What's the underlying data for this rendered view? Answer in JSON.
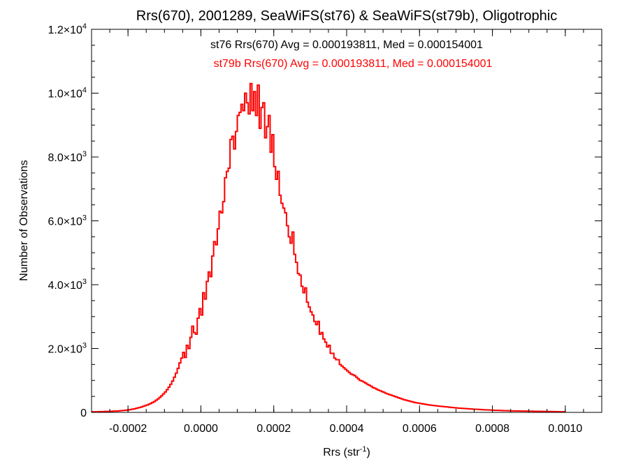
{
  "chart_data": {
    "type": "histogram",
    "title": "Rrs(670), 2001289, SeaWiFS(st76) & SeaWiFS(st79b), Oligotrophic",
    "xlabel": {
      "base": "Rrs (str",
      "sup": "-1",
      "close": ")"
    },
    "ylabel": "Number of Observations",
    "xlim": [
      -0.0003,
      0.0011
    ],
    "ylim": [
      0,
      12000
    ],
    "grid": false,
    "x_ticks": [
      {
        "value": -0.0002,
        "label": "-0.0002"
      },
      {
        "value": 0.0,
        "label": "0.0000"
      },
      {
        "value": 0.0002,
        "label": "0.0002"
      },
      {
        "value": 0.0004,
        "label": "0.0004"
      },
      {
        "value": 0.0006,
        "label": "0.0006"
      },
      {
        "value": 0.0008,
        "label": "0.0008"
      },
      {
        "value": 0.001,
        "label": "0.0010"
      }
    ],
    "y_ticks": [
      {
        "value": 0,
        "mant": "0",
        "exp": ""
      },
      {
        "value": 2000,
        "mant": "2.0×10",
        "exp": "3"
      },
      {
        "value": 4000,
        "mant": "4.0×10",
        "exp": "3"
      },
      {
        "value": 6000,
        "mant": "6.0×10",
        "exp": "3"
      },
      {
        "value": 8000,
        "mant": "8.0×10",
        "exp": "3"
      },
      {
        "value": 10000,
        "mant": "1.0×10",
        "exp": "4"
      },
      {
        "value": 12000,
        "mant": "1.2×10",
        "exp": "4"
      }
    ],
    "annotations": [
      {
        "text": "st76 Rrs(670) Avg = 0.000193811, Med = 0.000154001",
        "color": "#000000"
      },
      {
        "text": "st79b Rrs(670) Avg = 0.000193811, Med = 0.000154001",
        "color": "#ff0000"
      }
    ],
    "series": [
      {
        "name": "st76",
        "color": "#000000"
      },
      {
        "name": "st79b",
        "color": "#ff0000"
      }
    ],
    "bin_start": -0.0003,
    "bin_width": 5e-06,
    "counts": [
      20,
      20,
      20,
      20,
      25,
      25,
      25,
      30,
      30,
      30,
      35,
      35,
      40,
      40,
      45,
      50,
      55,
      60,
      65,
      70,
      80,
      90,
      100,
      110,
      125,
      140,
      155,
      170,
      190,
      210,
      230,
      255,
      280,
      310,
      340,
      380,
      420,
      470,
      520,
      580,
      640,
      710,
      790,
      880,
      980,
      1100,
      1230,
      1380,
      1550,
      1700,
      1880,
      1720,
      2100,
      2000,
      2350,
      2700,
      2500,
      2450,
      2950,
      3250,
      3050,
      3750,
      3550,
      4100,
      4400,
      4250,
      4900,
      5350,
      5250,
      5750,
      6300,
      6250,
      6600,
      7350,
      7550,
      7650,
      8550,
      8650,
      8250,
      8800,
      9300,
      9400,
      9650,
      9450,
      10000,
      9700,
      9350,
      10300,
      9450,
      10050,
      9300,
      10250,
      8900,
      9550,
      9700,
      8600,
      8950,
      9300,
      8150,
      8700,
      7700,
      7300,
      7550,
      6800,
      6550,
      6400,
      6250,
      5850,
      5500,
      5300,
      5650,
      4950,
      4700,
      4350,
      4300,
      3950,
      3750,
      3900,
      3450,
      3300,
      3150,
      3050,
      2850,
      2750,
      2850,
      2450,
      2500,
      2300,
      2200,
      2050,
      2100,
      1850,
      1850,
      1700,
      1650,
      1650,
      1500,
      1450,
      1400,
      1350,
      1300,
      1250,
      1200,
      1180,
      1150,
      1100,
      1050,
      1000,
      980,
      950,
      920,
      880,
      850,
      820,
      780,
      760,
      730,
      700,
      680,
      650,
      630,
      600,
      580,
      560,
      540,
      520,
      500,
      480,
      460,
      440,
      420,
      400,
      385,
      370,
      355,
      340,
      325,
      310,
      300,
      290,
      280,
      270,
      260,
      250,
      240,
      232,
      225,
      218,
      210,
      204,
      198,
      192,
      186,
      180,
      174,
      168,
      162,
      156,
      150,
      145,
      140,
      135,
      130,
      126,
      122,
      118,
      114,
      110,
      106,
      102,
      98,
      95,
      92,
      89,
      86,
      83,
      80,
      77,
      74,
      71,
      68,
      66,
      64,
      62,
      60,
      58,
      56,
      54,
      52,
      50,
      48,
      47,
      46,
      45,
      44,
      43,
      42,
      41,
      40,
      39,
      38,
      37,
      36,
      35,
      34,
      33,
      32,
      31,
      30,
      29,
      28,
      27,
      26,
      25,
      24,
      23,
      22,
      21,
      20,
      19
    ]
  }
}
